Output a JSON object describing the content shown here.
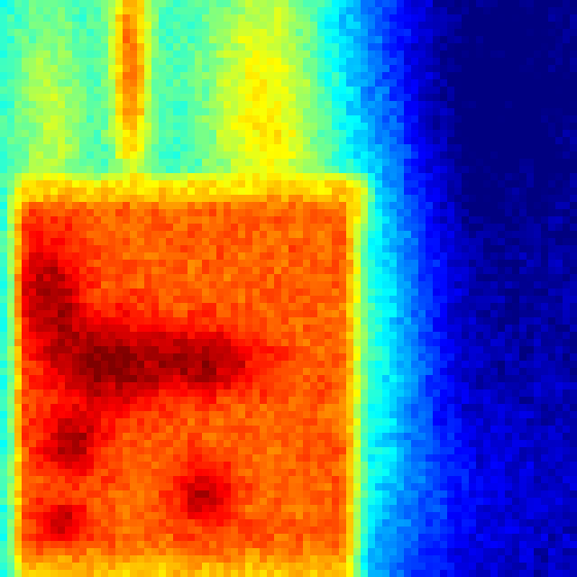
{
  "image": {
    "kind": "thermal-heatmap",
    "palette": "jet",
    "palette_stops": [
      "#00007f",
      "#0000ff",
      "#0080ff",
      "#00ffff",
      "#80ff80",
      "#ffff00",
      "#ff8000",
      "#ff0000",
      "#7f0000"
    ],
    "subject": "warm-object-on-left-cool-background-right",
    "grid_cells": 80
  }
}
